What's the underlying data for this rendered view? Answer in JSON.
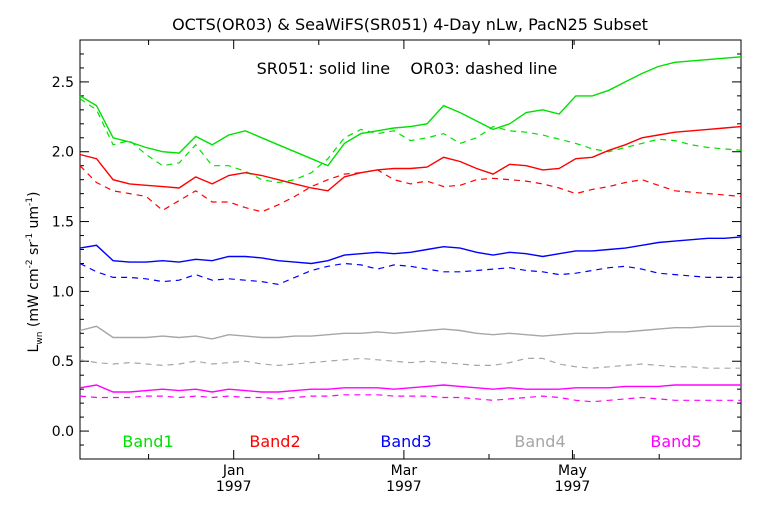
{
  "chart_data": {
    "type": "line",
    "title": "OCTS(OR03) & SeaWiFS(SR051) 4-Day nLw, PacN25 Subset",
    "annotation": "SR051: solid line    OR03: dashed line",
    "ylabel": "L_wn (mW cm-2 sr-1 um-1)",
    "ylabel_parts": {
      "base": "L",
      "sub": "wn",
      "pre": "(mW cm",
      "sup1": "-2",
      "mid1": " sr",
      "sup2": "-1",
      "mid2": " um",
      "sup3": "-1",
      "post": ")"
    },
    "xlabel": "",
    "ylim": [
      -0.2,
      2.8
    ],
    "xlim": [
      0,
      40
    ],
    "grid": false,
    "legend_placement": "bottom-inside",
    "yticks": [
      {
        "value": 0.0,
        "label": "0.0"
      },
      {
        "value": 0.5,
        "label": "0.5"
      },
      {
        "value": 1.0,
        "label": "1.0"
      },
      {
        "value": 1.5,
        "label": "1.5"
      },
      {
        "value": 2.0,
        "label": "2.0"
      },
      {
        "value": 2.5,
        "label": "2.5"
      }
    ],
    "xticks": [
      {
        "x": 9.3,
        "label": "Jan",
        "label2": "1997"
      },
      {
        "x": 19.6,
        "label": "Mar",
        "label2": "1997"
      },
      {
        "x": 29.8,
        "label": "May",
        "label2": "1997"
      }
    ],
    "x": [
      0,
      1,
      2,
      3,
      4,
      5,
      6,
      7,
      8,
      9,
      10,
      11,
      12,
      13,
      14,
      15,
      16,
      17,
      18,
      19,
      20,
      21,
      22,
      23,
      24,
      25,
      26,
      27,
      28,
      29,
      30,
      31,
      32,
      33,
      34,
      35,
      36,
      37,
      38,
      39,
      40
    ],
    "series": [
      {
        "band": "Band1",
        "color": "#00e000",
        "solid": [
          2.4,
          2.33,
          2.1,
          2.07,
          2.03,
          2.0,
          1.99,
          2.11,
          2.05,
          2.12,
          2.15,
          2.1,
          2.05,
          2.0,
          1.95,
          1.9,
          2.06,
          2.13,
          2.15,
          2.17,
          2.18,
          2.2,
          2.33,
          2.28,
          2.22,
          2.16,
          2.2,
          2.28,
          2.3,
          2.27,
          2.4,
          2.4,
          2.44,
          2.5,
          2.56,
          2.61,
          2.64,
          2.65,
          2.66,
          2.67,
          2.68
        ],
        "dashed": [
          2.38,
          2.3,
          2.05,
          2.08,
          1.98,
          1.9,
          1.92,
          2.05,
          1.9,
          1.9,
          1.86,
          1.8,
          1.78,
          1.8,
          1.85,
          1.95,
          2.1,
          2.16,
          2.13,
          2.15,
          2.08,
          2.1,
          2.13,
          2.06,
          2.1,
          2.18,
          2.15,
          2.14,
          2.12,
          2.09,
          2.06,
          2.02,
          2.0,
          2.03,
          2.06,
          2.09,
          2.08,
          2.05,
          2.03,
          2.02,
          2.01
        ]
      },
      {
        "band": "Band2",
        "color": "#ff0000",
        "solid": [
          1.98,
          1.95,
          1.8,
          1.77,
          1.76,
          1.75,
          1.74,
          1.82,
          1.77,
          1.83,
          1.85,
          1.83,
          1.8,
          1.77,
          1.74,
          1.72,
          1.82,
          1.85,
          1.87,
          1.88,
          1.88,
          1.89,
          1.96,
          1.93,
          1.88,
          1.84,
          1.91,
          1.9,
          1.87,
          1.88,
          1.95,
          1.96,
          2.01,
          2.05,
          2.1,
          2.12,
          2.14,
          2.15,
          2.16,
          2.17,
          2.18
        ],
        "dashed": [
          1.9,
          1.78,
          1.72,
          1.7,
          1.68,
          1.58,
          1.65,
          1.72,
          1.64,
          1.64,
          1.6,
          1.57,
          1.62,
          1.68,
          1.75,
          1.8,
          1.84,
          1.85,
          1.87,
          1.8,
          1.77,
          1.79,
          1.75,
          1.76,
          1.8,
          1.81,
          1.8,
          1.79,
          1.77,
          1.74,
          1.7,
          1.73,
          1.75,
          1.78,
          1.8,
          1.76,
          1.72,
          1.71,
          1.7,
          1.69,
          1.68
        ]
      },
      {
        "band": "Band3",
        "color": "#0000ff",
        "solid": [
          1.31,
          1.33,
          1.22,
          1.21,
          1.21,
          1.22,
          1.21,
          1.23,
          1.22,
          1.25,
          1.25,
          1.24,
          1.22,
          1.21,
          1.2,
          1.22,
          1.26,
          1.27,
          1.28,
          1.27,
          1.28,
          1.3,
          1.32,
          1.31,
          1.28,
          1.26,
          1.28,
          1.27,
          1.25,
          1.27,
          1.29,
          1.29,
          1.3,
          1.31,
          1.33,
          1.35,
          1.36,
          1.37,
          1.38,
          1.38,
          1.39
        ],
        "dashed": [
          1.2,
          1.14,
          1.1,
          1.1,
          1.09,
          1.07,
          1.08,
          1.12,
          1.08,
          1.09,
          1.08,
          1.07,
          1.05,
          1.1,
          1.15,
          1.18,
          1.2,
          1.19,
          1.16,
          1.19,
          1.18,
          1.16,
          1.14,
          1.14,
          1.15,
          1.16,
          1.17,
          1.15,
          1.14,
          1.12,
          1.13,
          1.15,
          1.17,
          1.18,
          1.16,
          1.13,
          1.12,
          1.11,
          1.1,
          1.1,
          1.1
        ]
      },
      {
        "band": "Band4",
        "color": "#a6a6a6",
        "solid": [
          0.72,
          0.75,
          0.67,
          0.67,
          0.67,
          0.68,
          0.67,
          0.68,
          0.66,
          0.69,
          0.68,
          0.67,
          0.67,
          0.68,
          0.68,
          0.69,
          0.7,
          0.7,
          0.71,
          0.7,
          0.71,
          0.72,
          0.73,
          0.72,
          0.7,
          0.69,
          0.7,
          0.69,
          0.68,
          0.69,
          0.7,
          0.7,
          0.71,
          0.71,
          0.72,
          0.73,
          0.74,
          0.74,
          0.75,
          0.75,
          0.75
        ],
        "dashed": [
          0.51,
          0.49,
          0.48,
          0.49,
          0.48,
          0.47,
          0.48,
          0.5,
          0.48,
          0.49,
          0.5,
          0.48,
          0.47,
          0.48,
          0.49,
          0.5,
          0.51,
          0.52,
          0.51,
          0.5,
          0.49,
          0.5,
          0.49,
          0.48,
          0.47,
          0.47,
          0.49,
          0.52,
          0.52,
          0.48,
          0.46,
          0.45,
          0.46,
          0.47,
          0.48,
          0.47,
          0.46,
          0.46,
          0.45,
          0.45,
          0.45
        ]
      },
      {
        "band": "Band5",
        "color": "#ff00ff",
        "solid": [
          0.31,
          0.33,
          0.28,
          0.28,
          0.29,
          0.3,
          0.29,
          0.3,
          0.28,
          0.3,
          0.29,
          0.28,
          0.28,
          0.29,
          0.3,
          0.3,
          0.31,
          0.31,
          0.31,
          0.3,
          0.31,
          0.32,
          0.33,
          0.32,
          0.31,
          0.3,
          0.31,
          0.3,
          0.3,
          0.3,
          0.31,
          0.31,
          0.31,
          0.32,
          0.32,
          0.32,
          0.33,
          0.33,
          0.33,
          0.33,
          0.33
        ],
        "dashed": [
          0.25,
          0.24,
          0.24,
          0.24,
          0.25,
          0.25,
          0.24,
          0.25,
          0.24,
          0.25,
          0.24,
          0.24,
          0.23,
          0.24,
          0.25,
          0.25,
          0.26,
          0.26,
          0.26,
          0.25,
          0.25,
          0.25,
          0.24,
          0.24,
          0.23,
          0.22,
          0.23,
          0.24,
          0.25,
          0.24,
          0.22,
          0.21,
          0.22,
          0.23,
          0.24,
          0.23,
          0.22,
          0.22,
          0.22,
          0.22,
          0.22
        ]
      }
    ]
  }
}
